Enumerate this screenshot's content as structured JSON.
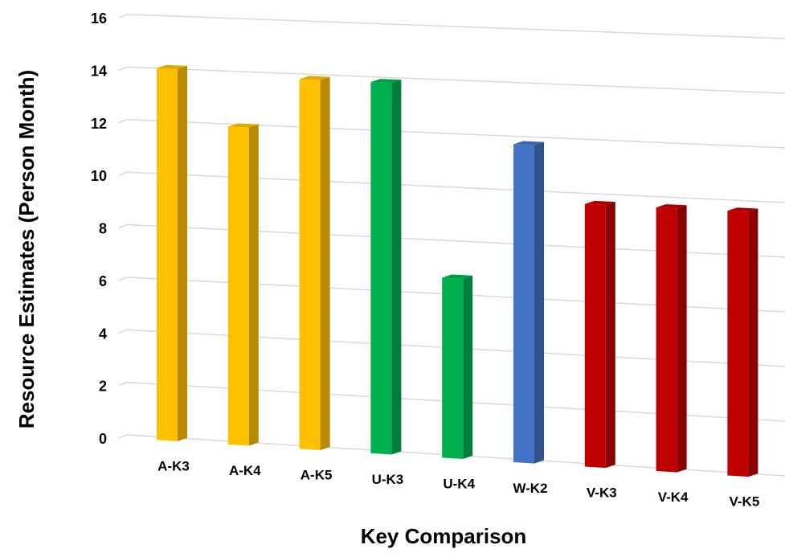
{
  "chart_data": {
    "type": "bar",
    "xlabel": "Key Comparison",
    "ylabel": "Resource Estimates (Person Month)",
    "ylim": [
      0,
      16
    ],
    "yticks": [
      "0",
      "2",
      "4",
      "6",
      "8",
      "10",
      "12",
      "14",
      "16"
    ],
    "grid": true,
    "legend": "none",
    "categories": [
      "A-K3",
      "A-K4",
      "A-K5",
      "U-K3",
      "U-K4",
      "W-K2",
      "V-K3",
      "V-K4",
      "V-K5"
    ],
    "values": [
      14.0,
      11.9,
      13.8,
      13.8,
      6.6,
      11.7,
      9.6,
      9.6,
      9.6
    ],
    "bar_colors": [
      "#ffc000",
      "#ffc000",
      "#ffc000",
      "#00b050",
      "#00b050",
      "#4472c4",
      "#c00000",
      "#c00000",
      "#c00000"
    ]
  }
}
